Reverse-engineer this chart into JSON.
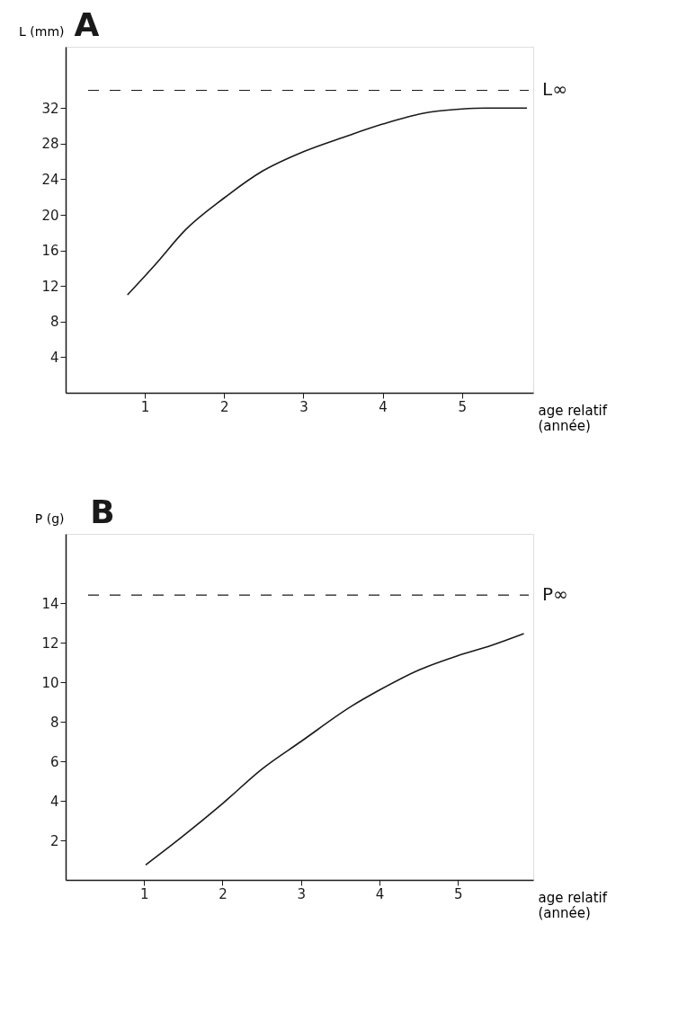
{
  "chart_data": [
    {
      "type": "line",
      "title": "A",
      "ylabel": "L (mm)",
      "xlabel": "age relatif\n(année)",
      "series": [
        {
          "color": "#1a1a1a",
          "x": [
            0.78,
            1.13,
            1.51,
            2.0,
            2.48,
            3.0,
            3.53,
            4.0,
            4.5,
            5.0,
            5.3,
            5.82
          ],
          "values": [
            11.0,
            14.4,
            18.3,
            21.9,
            24.9,
            27.1,
            28.8,
            30.2,
            31.4,
            31.9,
            32.0,
            32.0
          ]
        }
      ],
      "xlim": [
        0,
        5.9
      ],
      "ylim": [
        0,
        38.9
      ],
      "xticks": [
        1,
        2,
        3,
        4,
        5
      ],
      "yticks": [
        4,
        8,
        12,
        16,
        20,
        24,
        28,
        32
      ],
      "ref_lines": [
        {
          "axis": "y",
          "value": 34.0,
          "label": "L∞",
          "line_style": "dashed",
          "color": "#1a1a1a"
        }
      ],
      "grid": false,
      "marker": "none",
      "line_style": "solid"
    },
    {
      "type": "line",
      "title": "B",
      "ylabel": "P (g)",
      "xlabel": "age relatif\n(année)",
      "series": [
        {
          "color": "#1a1a1a",
          "x": [
            1.02,
            1.49,
            2.0,
            2.5,
            3.0,
            3.65,
            4.0,
            4.47,
            5.0,
            5.43,
            5.84
          ],
          "values": [
            0.76,
            2.2,
            3.86,
            5.6,
            7.0,
            8.8,
            9.6,
            10.56,
            11.34,
            11.86,
            12.45
          ]
        }
      ],
      "xlim": [
        0,
        5.96
      ],
      "ylim": [
        0,
        17.5
      ],
      "xticks": [
        1,
        2,
        3,
        4,
        5
      ],
      "yticks": [
        2,
        4,
        6,
        8,
        10,
        12,
        14
      ],
      "ref_lines": [
        {
          "axis": "y",
          "value": 14.4,
          "label": "P∞",
          "line_style": "dashed",
          "color": "#1a1a1a"
        }
      ],
      "grid": false,
      "marker": "none",
      "line_style": "solid"
    }
  ]
}
